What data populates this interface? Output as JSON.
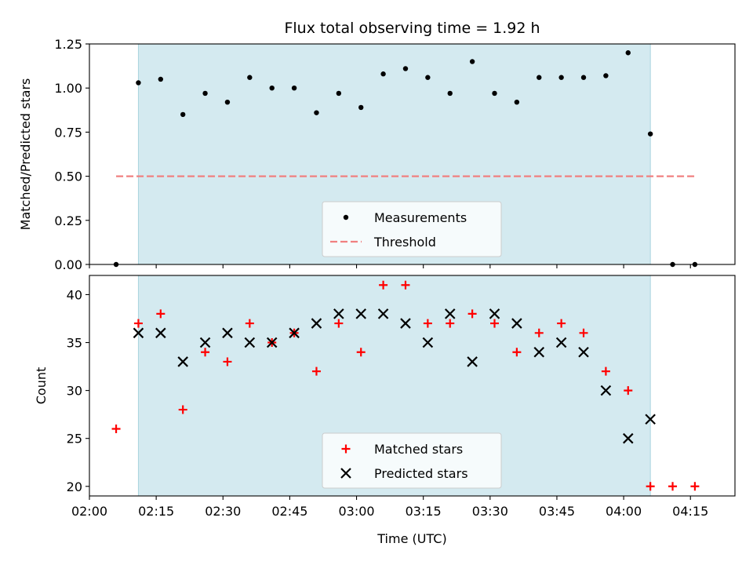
{
  "chart_data": [
    {
      "type": "scatter",
      "title": "Flux total observing time = 1.92 h",
      "xlabel": "",
      "ylabel": "Matched/Predicted stars",
      "ylim": [
        0.0,
        1.25
      ],
      "yticks": [
        "0.00",
        "0.25",
        "0.50",
        "0.75",
        "1.00",
        "1.25"
      ],
      "xlim": [
        "02:00",
        "04:25"
      ],
      "grid": false,
      "legend": "lower-center",
      "shaded_interval": [
        "02:11",
        "04:06"
      ],
      "shade_color": "#d4eaf0",
      "series": [
        {
          "name": "Measurements",
          "marker": "dot",
          "color": "#000000",
          "points": [
            [
              "02:06",
              0.0
            ],
            [
              "02:11",
              1.03
            ],
            [
              "02:16",
              1.05
            ],
            [
              "02:21",
              0.85
            ],
            [
              "02:26",
              0.97
            ],
            [
              "02:31",
              0.92
            ],
            [
              "02:36",
              1.06
            ],
            [
              "02:41",
              1.0
            ],
            [
              "02:46",
              1.0
            ],
            [
              "02:51",
              0.86
            ],
            [
              "02:56",
              0.97
            ],
            [
              "03:01",
              0.89
            ],
            [
              "03:06",
              1.08
            ],
            [
              "03:11",
              1.11
            ],
            [
              "03:16",
              1.06
            ],
            [
              "03:21",
              0.97
            ],
            [
              "03:26",
              1.15
            ],
            [
              "03:31",
              0.97
            ],
            [
              "03:36",
              0.92
            ],
            [
              "03:41",
              1.06
            ],
            [
              "03:46",
              1.06
            ],
            [
              "03:51",
              1.06
            ],
            [
              "03:56",
              1.07
            ],
            [
              "04:01",
              1.2
            ],
            [
              "04:06",
              0.74
            ],
            [
              "04:11",
              0.0
            ],
            [
              "04:16",
              0.0
            ]
          ]
        },
        {
          "name": "Threshold",
          "marker": "dashed-line",
          "color": "#f08080",
          "points": [
            [
              "02:06",
              0.5
            ],
            [
              "04:16",
              0.5
            ]
          ]
        }
      ]
    },
    {
      "type": "scatter",
      "title": "",
      "xlabel": "Time (UTC)",
      "ylabel": "Count",
      "ylim": [
        19,
        42
      ],
      "yticks": [
        "20",
        "25",
        "30",
        "35",
        "40"
      ],
      "xticks": [
        "02:00",
        "02:15",
        "02:30",
        "02:45",
        "03:00",
        "03:15",
        "03:30",
        "03:45",
        "04:00",
        "04:15"
      ],
      "xlim": [
        "02:00",
        "04:25"
      ],
      "grid": false,
      "legend": "lower-center",
      "shaded_interval": [
        "02:11",
        "04:06"
      ],
      "shade_color": "#d4eaf0",
      "series": [
        {
          "name": "Matched stars",
          "marker": "plus",
          "color": "#ff0000",
          "points": [
            [
              "02:06",
              26
            ],
            [
              "02:11",
              37
            ],
            [
              "02:16",
              38
            ],
            [
              "02:21",
              28
            ],
            [
              "02:26",
              34
            ],
            [
              "02:31",
              33
            ],
            [
              "02:36",
              37
            ],
            [
              "02:41",
              35
            ],
            [
              "02:46",
              36
            ],
            [
              "02:51",
              32
            ],
            [
              "02:56",
              37
            ],
            [
              "03:01",
              34
            ],
            [
              "03:06",
              41
            ],
            [
              "03:11",
              41
            ],
            [
              "03:16",
              37
            ],
            [
              "03:21",
              37
            ],
            [
              "03:26",
              38
            ],
            [
              "03:31",
              37
            ],
            [
              "03:36",
              34
            ],
            [
              "03:41",
              36
            ],
            [
              "03:46",
              37
            ],
            [
              "03:51",
              36
            ],
            [
              "03:56",
              32
            ],
            [
              "04:01",
              30
            ],
            [
              "04:06",
              20
            ],
            [
              "04:11",
              20
            ],
            [
              "04:16",
              20
            ]
          ]
        },
        {
          "name": "Predicted stars",
          "marker": "x",
          "color": "#000000",
          "points": [
            [
              "02:11",
              36
            ],
            [
              "02:16",
              36
            ],
            [
              "02:21",
              33
            ],
            [
              "02:26",
              35
            ],
            [
              "02:31",
              36
            ],
            [
              "02:36",
              35
            ],
            [
              "02:41",
              35
            ],
            [
              "02:46",
              36
            ],
            [
              "02:51",
              37
            ],
            [
              "02:56",
              38
            ],
            [
              "03:01",
              38
            ],
            [
              "03:06",
              38
            ],
            [
              "03:11",
              37
            ],
            [
              "03:16",
              35
            ],
            [
              "03:21",
              38
            ],
            [
              "03:26",
              33
            ],
            [
              "03:31",
              38
            ],
            [
              "03:36",
              37
            ],
            [
              "03:41",
              34
            ],
            [
              "03:46",
              35
            ],
            [
              "03:51",
              34
            ],
            [
              "03:56",
              30
            ],
            [
              "04:01",
              25
            ],
            [
              "04:06",
              27
            ]
          ]
        }
      ]
    }
  ]
}
